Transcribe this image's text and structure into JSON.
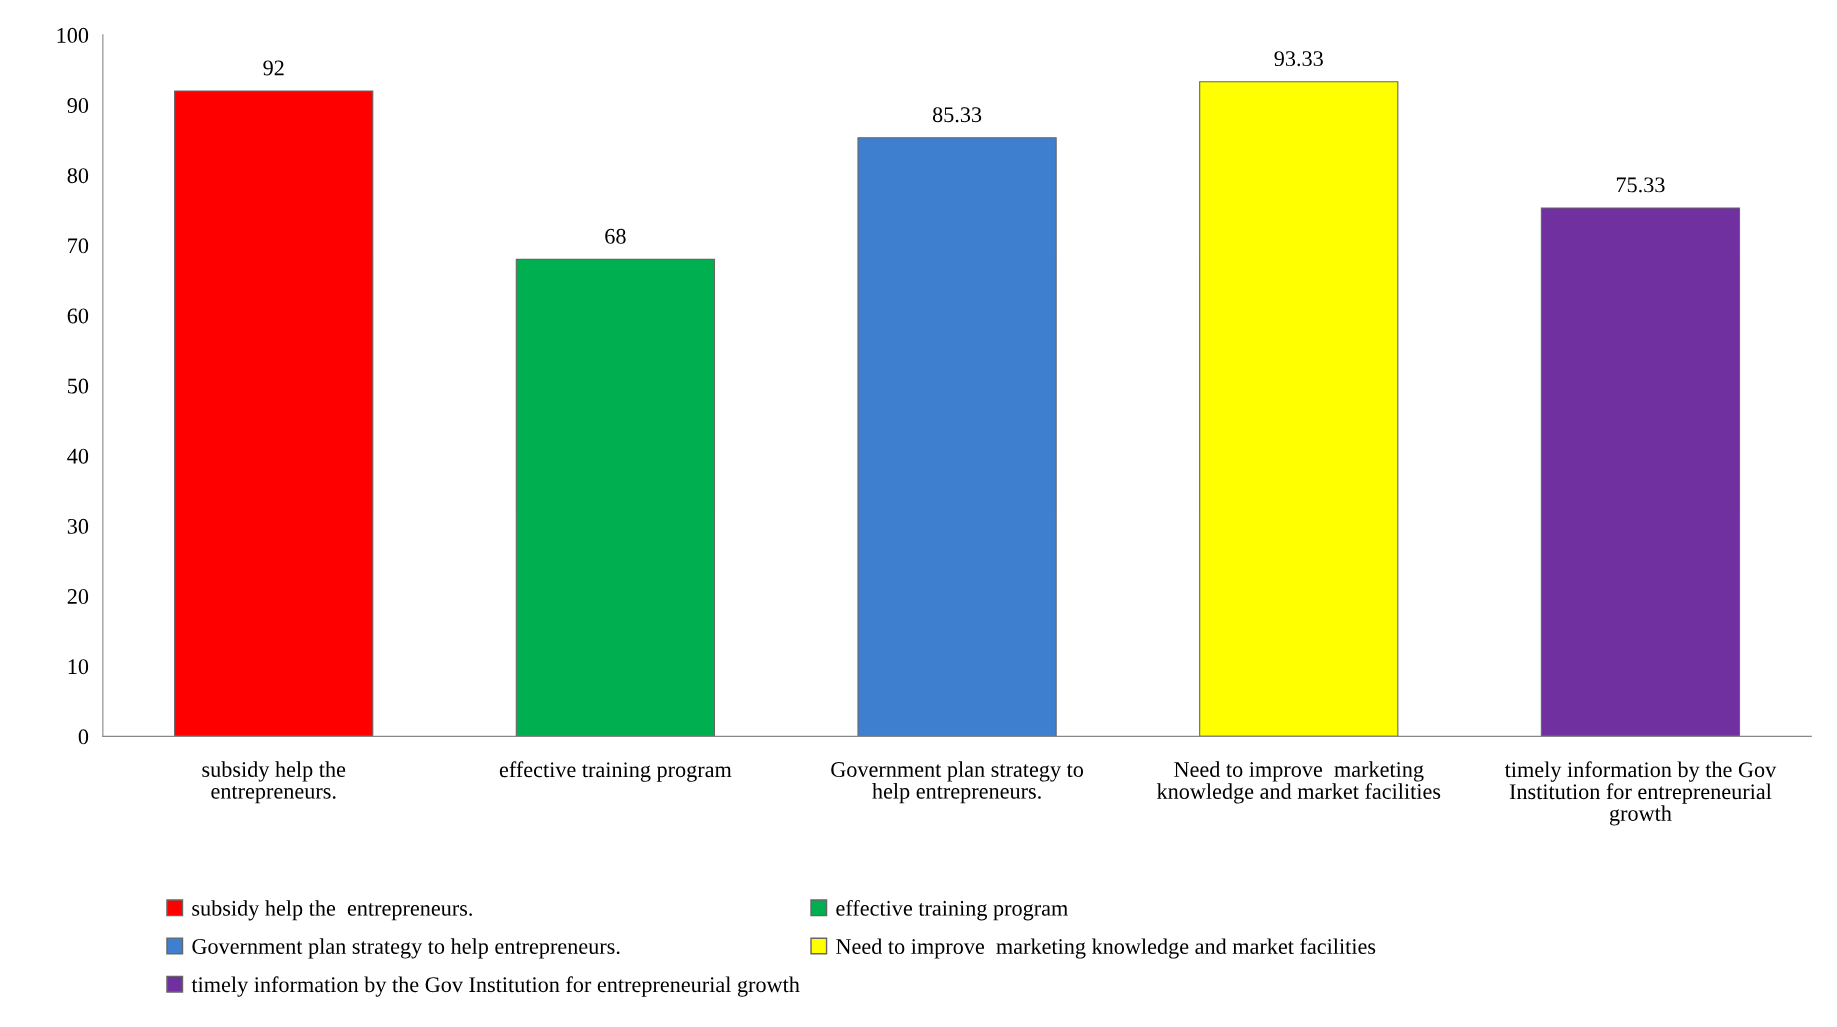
{
  "chart_data": {
    "type": "bar",
    "categories": [
      "subsidy help the\nentrepreneurs.",
      "effective training program",
      "Government plan strategy to\nhelp entrepreneurs.",
      "Need to improve  marketing\nknowledge and market facilities",
      "timely information by the Gov\nInstitution for entrepreneurial\ngrowth"
    ],
    "series": [
      {
        "name": "subsidy help the  entrepreneurs.",
        "color": "#ff0000",
        "values": [
          92,
          null,
          null,
          null,
          null
        ]
      },
      {
        "name": "effective training program",
        "color": "#00b050",
        "values": [
          null,
          68,
          null,
          null,
          null
        ]
      },
      {
        "name": "Government plan strategy to help entrepreneurs.",
        "color": "#3f7fd0",
        "values": [
          null,
          null,
          85.33,
          null,
          null
        ]
      },
      {
        "name": "Need to improve  marketing knowledge and market facilities",
        "color": "#ffff00",
        "values": [
          null,
          null,
          null,
          93.33,
          null
        ]
      },
      {
        "name": "timely information by the Gov Institution for entrepreneurial growth",
        "color": "#7030a0",
        "values": [
          null,
          null,
          null,
          null,
          75.33
        ]
      }
    ],
    "ylim": [
      0,
      100
    ],
    "yticks": [
      0,
      10,
      20,
      30,
      40,
      50,
      60,
      70,
      80,
      90,
      100
    ],
    "data_labels": true,
    "grid": false,
    "legend": "bottom"
  }
}
